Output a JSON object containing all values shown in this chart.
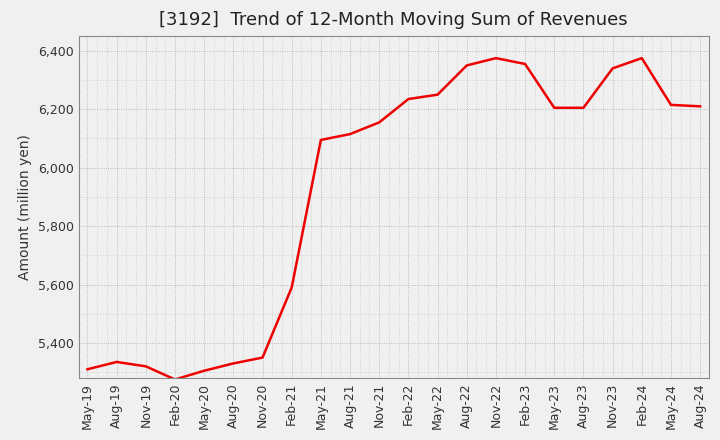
{
  "title": "[3192]  Trend of 12-Month Moving Sum of Revenues",
  "ylabel": "Amount (million yen)",
  "line_color": "#ee0000",
  "line_width": 1.8,
  "bg_color": "#f0f0f0",
  "plot_bg_color": "#f0f0f0",
  "grid_color": "#999999",
  "ylim": [
    5280,
    6450
  ],
  "yticks": [
    5400,
    5600,
    5800,
    6000,
    6200,
    6400
  ],
  "labels": [
    "May-19",
    "Aug-19",
    "Nov-19",
    "Feb-20",
    "May-20",
    "Aug-20",
    "Nov-20",
    "Feb-21",
    "May-21",
    "Aug-21",
    "Nov-21",
    "Feb-22",
    "May-22",
    "Aug-22",
    "Nov-22",
    "Feb-23",
    "May-23",
    "Aug-23",
    "Nov-23",
    "Feb-24",
    "May-24",
    "Aug-24"
  ],
  "values": [
    5310,
    5335,
    5320,
    5275,
    5305,
    5330,
    5350,
    5590,
    6095,
    6115,
    6155,
    6235,
    6250,
    6350,
    6375,
    6355,
    6205,
    6205,
    6340,
    6375,
    6215,
    6210
  ],
  "title_fontsize": 13,
  "ylabel_fontsize": 10,
  "tick_fontsize": 9
}
